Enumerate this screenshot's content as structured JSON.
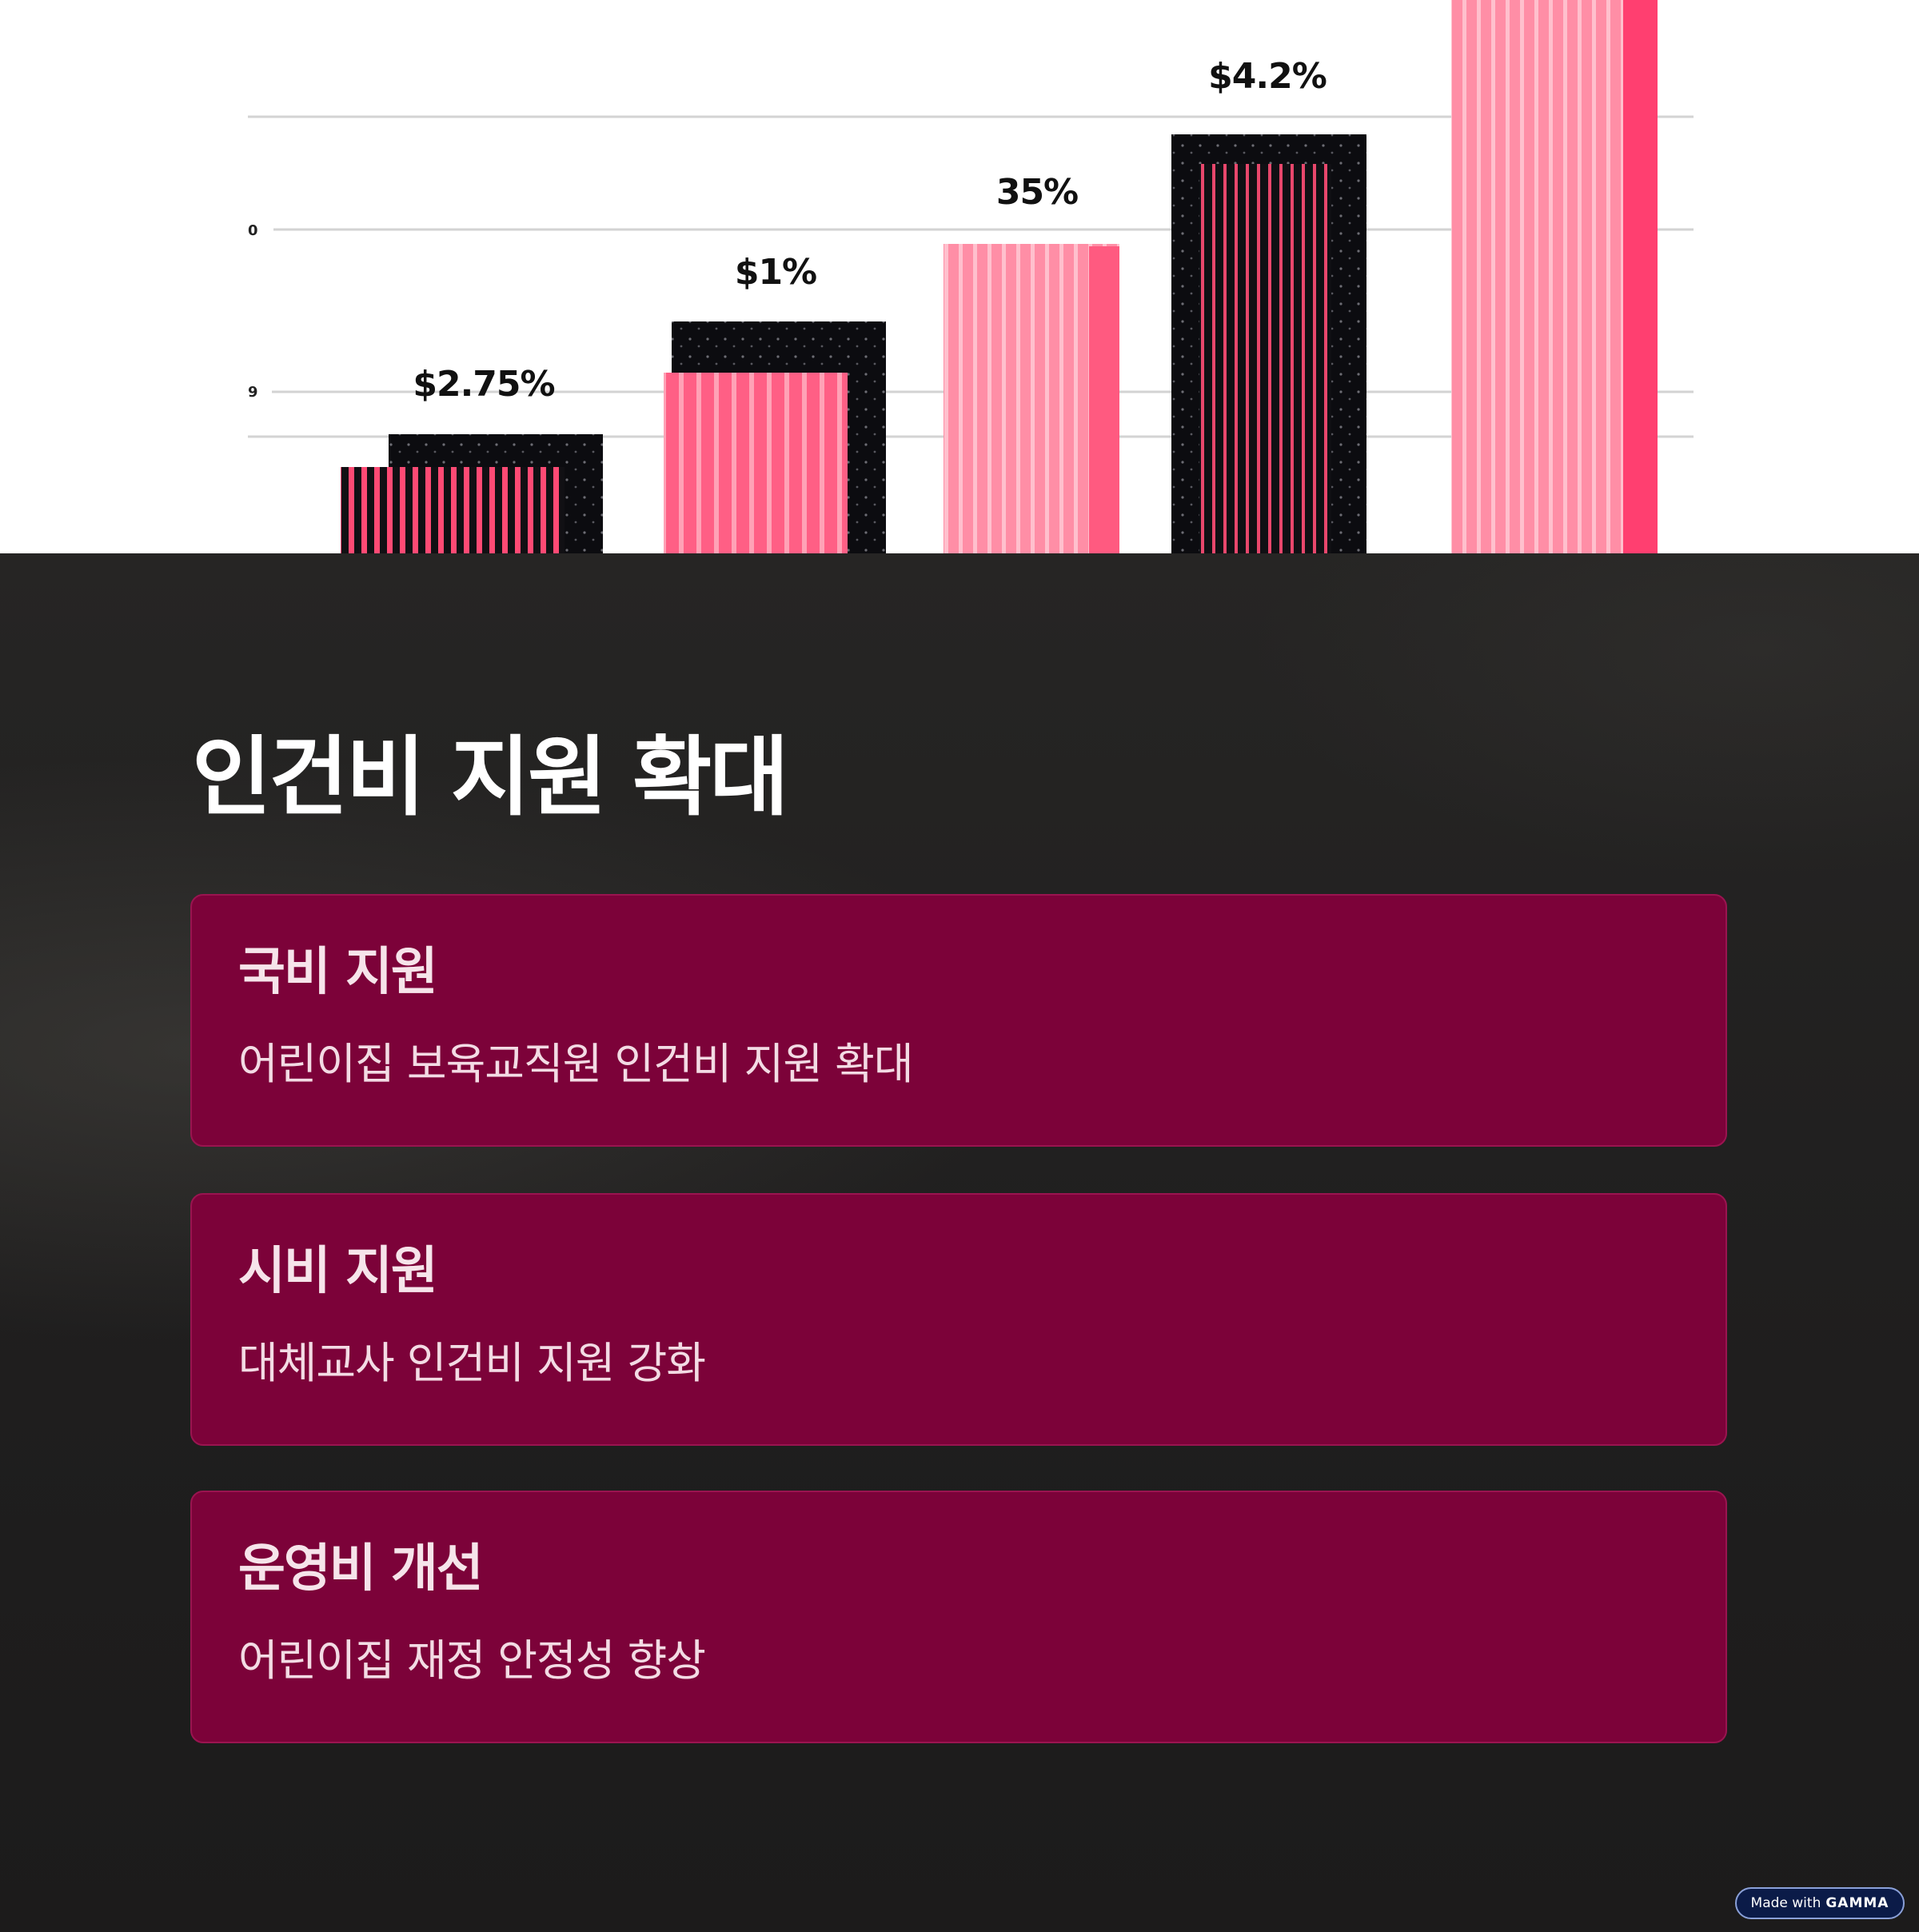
{
  "chart": {
    "bar_labels": [
      "$2.75%",
      "$1%",
      "35%",
      "$4.2%"
    ],
    "axis_ticks": [
      "0",
      "9"
    ]
  },
  "title": "인건비 지원 확대",
  "cards": [
    {
      "title": "국비 지원",
      "text": "어린이집 보육교직원 인건비 지원 확대"
    },
    {
      "title": "시비 지원",
      "text": "대체교사 인건비 지원 강화"
    },
    {
      "title": "운영비 개선",
      "text": "어린이집 재정 안정성 향상"
    }
  ],
  "badge": {
    "prefix": "Made with",
    "brand": "GAMMA"
  },
  "colors": {
    "background": "#1e1d1d",
    "card": "#7c0239",
    "bar_pink": "#ff6f8f",
    "bar_dark": "#0c0c10"
  }
}
